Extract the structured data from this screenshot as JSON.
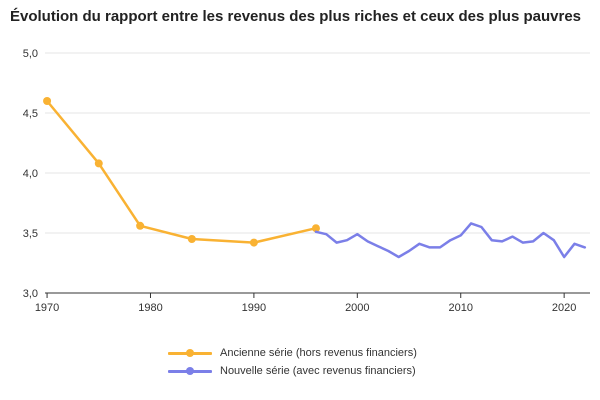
{
  "chart_data": {
    "type": "line",
    "title": "Évolution du rapport entre les revenus des plus riches et ceux des plus pauvres",
    "xlabel": "",
    "ylabel": "",
    "xlim": [
      1969.8,
      2022.5
    ],
    "ylim": [
      3.0,
      5.0
    ],
    "x_ticks": [
      1970,
      1980,
      1990,
      2000,
      2010,
      2020
    ],
    "y_ticks": [
      "3,0",
      "3,5",
      "4,0",
      "4,5",
      "5,0"
    ],
    "grid": true,
    "legend_position": "bottom",
    "series": [
      {
        "name": "Ancienne série (hors revenus financiers)",
        "color": "#F9B233",
        "markers": true,
        "x": [
          1970,
          1975,
          1979,
          1984,
          1990,
          1996
        ],
        "y": [
          4.6,
          4.08,
          3.56,
          3.45,
          3.42,
          3.54
        ]
      },
      {
        "name": "Nouvelle série (avec revenus financiers)",
        "color": "#7B7FE8",
        "markers": false,
        "x": [
          1996,
          1997,
          1998,
          1999,
          2000,
          2001,
          2002,
          2003,
          2004,
          2005,
          2006,
          2007,
          2008,
          2009,
          2010,
          2011,
          2012,
          2013,
          2014,
          2015,
          2016,
          2017,
          2018,
          2019,
          2020,
          2021,
          2022
        ],
        "y": [
          3.51,
          3.49,
          3.42,
          3.44,
          3.49,
          3.43,
          3.39,
          3.35,
          3.3,
          3.35,
          3.41,
          3.38,
          3.38,
          3.44,
          3.48,
          3.58,
          3.55,
          3.44,
          3.43,
          3.47,
          3.42,
          3.43,
          3.5,
          3.44,
          3.3,
          3.41,
          3.38
        ]
      }
    ]
  }
}
